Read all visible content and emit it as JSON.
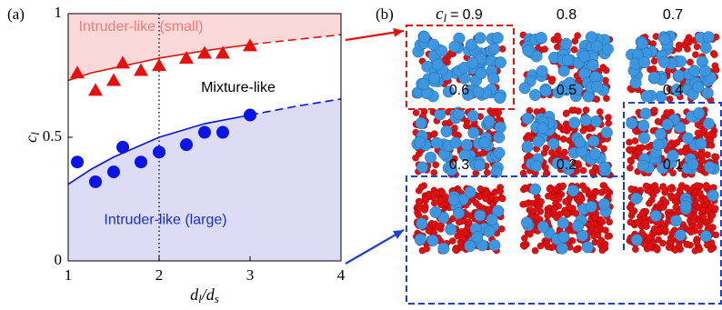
{
  "chart_data": {
    "type": "scatter",
    "panel_label": "(a)",
    "xlabel": [
      {
        "t": "d"
      },
      {
        "t": "l",
        "sub": true
      },
      {
        "t": "/d"
      },
      {
        "t": "s",
        "sub": true
      }
    ],
    "ylabel": [
      {
        "t": "c"
      },
      {
        "t": "l",
        "sub": true
      }
    ],
    "xlim": [
      1,
      4
    ],
    "xticks": [
      1,
      2,
      3,
      4
    ],
    "ylim": [
      0,
      1
    ],
    "yticks": [
      0,
      0.5,
      1
    ],
    "vline": 2,
    "series": [
      {
        "marker": "triangle",
        "color": "#e8100c",
        "x": [
          1.1,
          1.3,
          1.5,
          1.6,
          1.8,
          2.0,
          2.3,
          2.5,
          2.7,
          3.0
        ],
        "values": [
          0.76,
          0.69,
          0.73,
          0.8,
          0.77,
          0.79,
          0.82,
          0.84,
          0.84,
          0.87
        ]
      },
      {
        "marker": "circle",
        "color": "#0a14e6",
        "x": [
          1.1,
          1.3,
          1.5,
          1.6,
          1.8,
          2.0,
          2.3,
          2.5,
          2.7,
          3.0
        ],
        "values": [
          0.4,
          0.32,
          0.36,
          0.46,
          0.4,
          0.44,
          0.47,
          0.52,
          0.52,
          0.59
        ]
      }
    ],
    "curves": [
      {
        "color": "#e8100c",
        "fill": "above",
        "fill_color": "#fbd9d9",
        "x": [
          1,
          1.25,
          1.5,
          1.75,
          2,
          2.5,
          3
        ],
        "values": [
          0.73,
          0.76,
          0.78,
          0.8,
          0.82,
          0.85,
          0.875
        ],
        "dashed": false
      },
      {
        "color": "#e8100c",
        "fill": "above",
        "fill_color": "#fbd9d9",
        "x": [
          3,
          3.5,
          4
        ],
        "values": [
          0.875,
          0.895,
          0.915
        ],
        "dashed": true
      },
      {
        "color": "#0a14e6",
        "fill": "below",
        "fill_color": "#dcdcf7",
        "x": [
          1,
          1.25,
          1.5,
          1.75,
          2,
          2.5,
          3
        ],
        "values": [
          0.31,
          0.37,
          0.42,
          0.46,
          0.5,
          0.555,
          0.59
        ],
        "dashed": false
      },
      {
        "color": "#0a14e6",
        "fill": "below",
        "fill_color": "#dcdcf7",
        "x": [
          3,
          3.5,
          4
        ],
        "values": [
          0.59,
          0.625,
          0.655
        ],
        "dashed": true
      }
    ],
    "annotations": [
      {
        "text": "Intruder-like (small)",
        "color": "#f07a7a",
        "x": 1.8,
        "y": 0.945
      },
      {
        "text": "Mixture-like",
        "color": "#000000",
        "x": 2.87,
        "y": 0.7
      },
      {
        "text": "Intruder-like (large)",
        "color": "#1a2ed0",
        "x": 2.07,
        "y": 0.165
      }
    ]
  },
  "panel_b": {
    "label": "(b)",
    "variable": "c",
    "subscript": "l",
    "equals": "=",
    "concentrations": [
      "0.9",
      "0.8",
      "0.7",
      "0.6",
      "0.5",
      "0.4",
      "0.3",
      "0.2",
      "0.1"
    ]
  }
}
